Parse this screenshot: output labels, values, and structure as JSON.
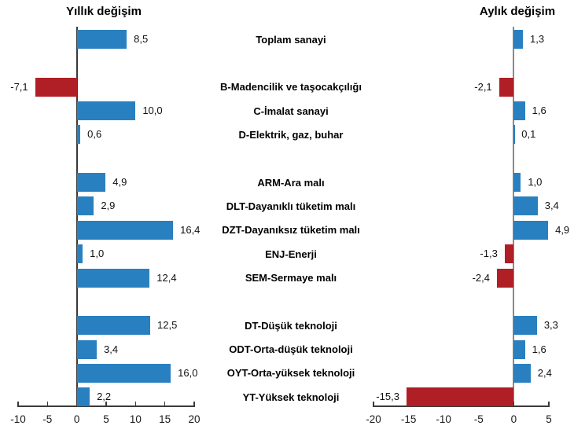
{
  "chart_data": {
    "type": "bar",
    "orientation": "horizontal",
    "panel_titles": {
      "left": "Yıllık değişim",
      "right": "Aylık değişim"
    },
    "categories": [
      "Toplam sanayi",
      "B-Madencilik ve taşocakçılığı",
      "C-İmalat sanayi",
      "D-Elektrik, gaz, buhar",
      "ARM-Ara malı",
      "DLT-Dayanıklı tüketim malı",
      "DZT-Dayanıksız tüketim malı",
      "ENJ-Enerji",
      "SEM-Sermaye malı",
      "DT-Düşük teknoloji",
      "ODT-Orta-düşük teknoloji",
      "OYT-Orta-yüksek teknoloji",
      "YT-Yüksek teknoloji"
    ],
    "group_sizes": [
      1,
      3,
      5,
      4
    ],
    "series": [
      {
        "name": "Yıllık değişim",
        "side": "left",
        "values": [
          8.5,
          -7.1,
          10.0,
          0.6,
          4.9,
          2.9,
          16.4,
          1.0,
          12.4,
          12.5,
          3.4,
          16.0,
          2.2
        ],
        "value_labels": [
          "8,5",
          "-7,1",
          "10,0",
          "0,6",
          "4,9",
          "2,9",
          "16,4",
          "1,0",
          "12,4",
          "12,5",
          "3,4",
          "16,0",
          "2,2"
        ],
        "xlim": [
          -10,
          20
        ],
        "ticks": [
          -10,
          -5,
          0,
          5,
          10,
          15,
          20
        ],
        "tick_labels": [
          "-10",
          "-5",
          "0",
          "5",
          "10",
          "15",
          "20"
        ]
      },
      {
        "name": "Aylık değişim",
        "side": "right",
        "values": [
          1.3,
          -2.1,
          1.6,
          0.1,
          1.0,
          3.4,
          4.9,
          -1.3,
          -2.4,
          3.3,
          1.6,
          2.4,
          -15.3
        ],
        "value_labels": [
          "1,3",
          "-2,1",
          "1,6",
          "0,1",
          "1,0",
          "3,4",
          "4,9",
          "-1,3",
          "-2,4",
          "3,3",
          "1,6",
          "2,4",
          "-15,3"
        ],
        "xlim": [
          -20,
          5
        ],
        "ticks": [
          -20,
          -15,
          -10,
          -5,
          0,
          5
        ],
        "tick_labels": [
          "-20",
          "-15",
          "-10",
          "-5",
          "0",
          "5"
        ]
      }
    ],
    "colors": {
      "positive": "#2980C0",
      "negative": "#B01F26",
      "axis_dark": "#3A3A3A",
      "axis_gray": "#8A8A8A",
      "text": "#000000"
    },
    "grid": false,
    "legend": "none"
  }
}
